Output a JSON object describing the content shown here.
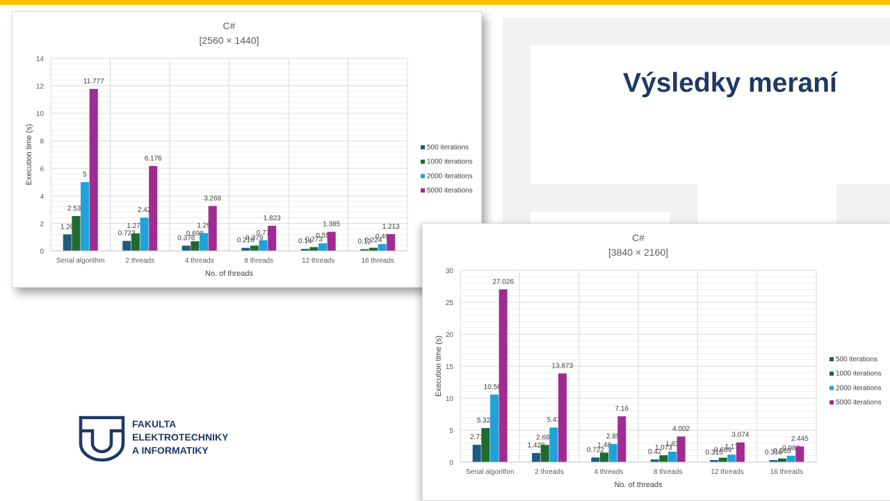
{
  "slide": {
    "title": "Výsledky meraní",
    "logo_lines": [
      "FAKULTA",
      "ELEKTROTECHNIKY",
      "A INFORMATIKY"
    ],
    "accent_color": "#FFC000",
    "title_color": "#1F3864"
  },
  "chart_data": [
    {
      "type": "bar",
      "title": "C#",
      "subtitle": "[2560 × 1440]",
      "xlabel": "No. of threads",
      "ylabel": "Execution time (s)",
      "ylim": [
        0,
        14
      ],
      "ystep": 2,
      "yticks": [
        "0",
        "2",
        "4",
        "6",
        "8",
        "10",
        "12",
        "14"
      ],
      "grid": true,
      "legend_position": "right",
      "categories": [
        "Serial algorithm",
        "2 threads",
        "4 threads",
        "8 threads",
        "12 threads",
        "16 threads"
      ],
      "series": [
        {
          "name": "500 iterations",
          "color": "#1F5C80",
          "values": [
            1.2,
            0.723,
            0.376,
            0.216,
            0.14,
            0.12
          ],
          "labels": [
            "1.20",
            "0.723",
            "0.376",
            "0.216",
            "0.14",
            "0.12"
          ]
        },
        {
          "name": "1000 iterations",
          "color": "#1E6B2E",
          "values": [
            2.531,
            1.272,
            0.698,
            0.379,
            0.273,
            0.224
          ],
          "labels": [
            "2.531",
            "1.272",
            "0.698",
            "0.379",
            "0.273",
            "0.224"
          ]
        },
        {
          "name": "2000 iterations",
          "color": "#1FA2DA",
          "values": [
            5,
            2.42,
            1.29,
            0.77,
            0.55,
            0.49
          ],
          "labels": [
            "5",
            "2.42",
            "1.29",
            "0.77",
            "0.55",
            "0.49"
          ]
        },
        {
          "name": "5000 iterations",
          "color": "#A02B93",
          "values": [
            11.777,
            6.176,
            3.268,
            1.823,
            1.385,
            1.213
          ],
          "labels": [
            "11.777",
            "6.176",
            "3.268",
            "1.823",
            "1.385",
            "1.213"
          ]
        }
      ]
    },
    {
      "type": "bar",
      "title": "C#",
      "subtitle": "[3840 × 2160]",
      "xlabel": "No. of threads",
      "ylabel": "Execution time (s)",
      "ylim": [
        0,
        30
      ],
      "ystep": 5,
      "yticks": [
        "0",
        "5",
        "10",
        "15",
        "20",
        "25",
        "30"
      ],
      "grid": true,
      "legend_position": "right",
      "categories": [
        "Serial algorithm",
        "2 threads",
        "4 threads",
        "8 threads",
        "12 threads",
        "16 threads"
      ],
      "series": [
        {
          "name": "500 iterations",
          "color": "#1F5C80",
          "values": [
            2.71,
            1.428,
            0.722,
            0.42,
            0.315,
            0.316
          ],
          "labels": [
            "2.71",
            "1.428",
            "0.722",
            "0.42",
            "0.315",
            "0.316"
          ]
        },
        {
          "name": "1000 iterations",
          "color": "#1E6B2E",
          "values": [
            5.322,
            2.689,
            1.48,
            1.073,
            0.689,
            0.565
          ],
          "labels": [
            "5.322",
            "2.689",
            "1.48",
            "1.073",
            "0.689",
            "0.565"
          ]
        },
        {
          "name": "2000 iterations",
          "color": "#1FA2DA",
          "values": [
            10.562,
            5.41,
            2.85,
            1.63,
            1.17,
            0.986
          ],
          "labels": [
            "10.562",
            "5.41",
            "2.85",
            "1.63",
            "1.17",
            "0.986"
          ]
        },
        {
          "name": "5000 iterations",
          "color": "#A02B93",
          "values": [
            27.026,
            13.873,
            7.16,
            4.002,
            3.074,
            2.445
          ],
          "labels": [
            "27.026",
            "13.873",
            "7.16",
            "4.002",
            "3.074",
            "2.445"
          ]
        }
      ]
    }
  ]
}
